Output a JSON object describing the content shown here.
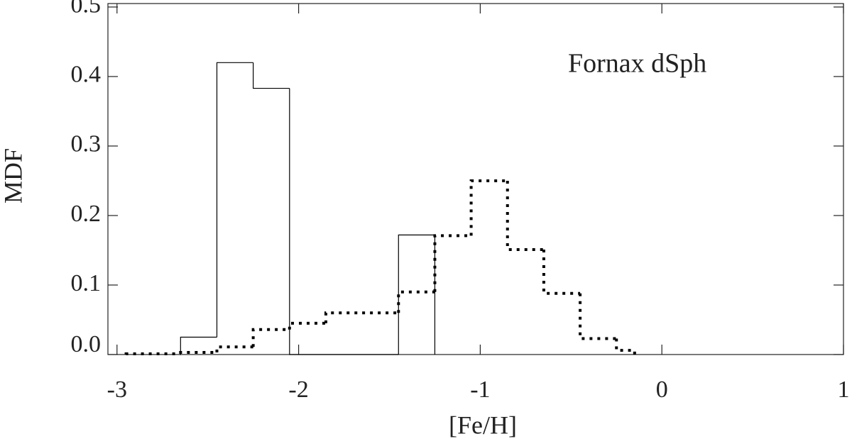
{
  "chart_data": {
    "type": "histogram",
    "x_label": "[Fe/H]",
    "y_label": "MDF",
    "annotation": "Fornax dSph",
    "xlim": [
      -3.05,
      1
    ],
    "ylim": [
      0,
      0.505
    ],
    "xticks": [
      -3,
      -2,
      -1,
      0,
      1
    ],
    "yticks": [
      {
        "value": 0,
        "label": "0.0"
      },
      0.1,
      0.2,
      0.3,
      0.4,
      0.5
    ],
    "series": [
      {
        "color": "#000000",
        "dash": "solid",
        "bins": [
          -2.65,
          -2.45,
          -2.25,
          -2.05,
          -1.85,
          -1.65,
          -1.45,
          -1.25
        ],
        "values": [
          0.025,
          0.42,
          0.383,
          0,
          0,
          0,
          0.172
        ]
      },
      {
        "color": "#000000",
        "dash": "dotted",
        "bins": [
          -2.95,
          -2.65,
          -2.45,
          -2.25,
          -2.05,
          -1.85,
          -1.65,
          -1.45,
          -1.25,
          -1.05,
          -0.85,
          -0.65,
          -0.45,
          -0.25,
          -0.15
        ],
        "values": [
          0.001,
          0.003,
          0.011,
          0.036,
          0.045,
          0.06,
          0.06,
          0.09,
          0.171,
          0.25,
          0.151,
          0.088,
          0.023,
          0.006
        ]
      }
    ]
  }
}
